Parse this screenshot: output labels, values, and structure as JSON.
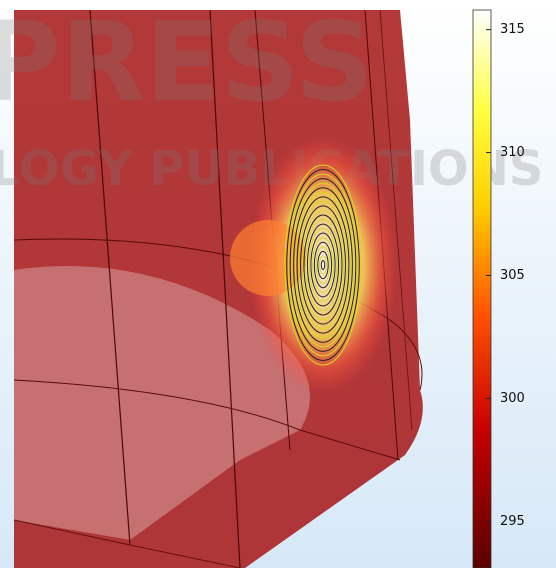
{
  "colorbar": {
    "range": [
      293.1,
      315.8
    ],
    "ticks": [
      295,
      300,
      305,
      310,
      315
    ]
  },
  "watermark": [
    "PRESS",
    "LOGY PUBLICATIONS"
  ]
}
